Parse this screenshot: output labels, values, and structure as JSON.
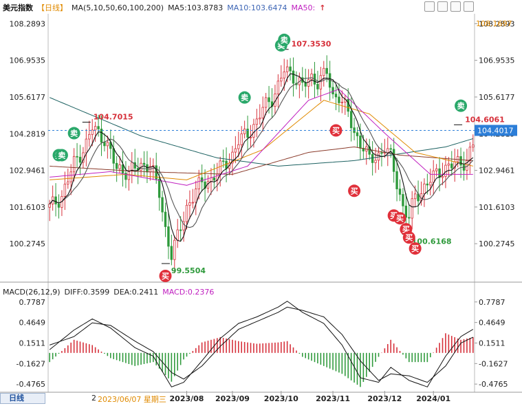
{
  "header": {
    "title": "美元指数",
    "period_tag": "【日线】",
    "ma_label": "MA(5,10,50,60,100,200)",
    "ma5": "MA5:103.8783",
    "ma10": "MA10:103.6474",
    "ma50": "MA50:",
    "ma50_arrow": "↑"
  },
  "macd_header": {
    "label": "MACD(26,12,9)",
    "diff": "DIFF:0.3599",
    "dea": "DEA:0.2411",
    "macd": "MACD:0.2376"
  },
  "footer": {
    "period_button": "日线",
    "cursor_date": "2023/06/07 星期三",
    "first_tick": "2"
  },
  "colors": {
    "up": "#d6303a",
    "down": "#2f9a3c",
    "ma5": "#111111",
    "ma10": "#555555",
    "ma50": "#c020c0",
    "ma60": "#e08a00",
    "ma100": "#8a3a2a",
    "ma200": "#1a6060",
    "diff": "#111111",
    "dea": "#111111",
    "axis_text": "#222222",
    "price_tag_bg": "#2c7ed8",
    "sell_badge": "#2aa86a",
    "buy_badge": "#e0303a"
  },
  "chart_data": [
    {
      "type": "candlestick",
      "title": "美元指数",
      "ylim": [
        99.3,
        108.6
      ],
      "y_ticks": [
        108.2893,
        106.9535,
        105.6177,
        104.2819,
        102.9461,
        101.6103,
        100.2745
      ],
      "y_tick_labels": [
        "108.2893",
        "106.9535",
        "105.6177",
        "104.2819",
        "102.9461",
        "101.6103",
        "100.2745"
      ],
      "x_tick_labels": [
        "2023/08",
        "2023/09",
        "2023/10",
        "2023/11",
        "2023/12",
        "2024/01"
      ],
      "x_tick_index": [
        45,
        60,
        76,
        93,
        110,
        126
      ],
      "candles_count": 140,
      "candle_anchors": [
        [
          0,
          101.6
        ],
        [
          4,
          102.0
        ],
        [
          8,
          103.2
        ],
        [
          12,
          103.9
        ],
        [
          14,
          104.5
        ],
        [
          18,
          104.1
        ],
        [
          22,
          103.0
        ],
        [
          26,
          102.9
        ],
        [
          30,
          103.1
        ],
        [
          33,
          103.2
        ],
        [
          36,
          102.1
        ],
        [
          38,
          100.8
        ],
        [
          40,
          99.9
        ],
        [
          42,
          100.5
        ],
        [
          45,
          101.6
        ],
        [
          48,
          102.2
        ],
        [
          50,
          102.5
        ],
        [
          53,
          102.6
        ],
        [
          56,
          103.0
        ],
        [
          60,
          103.5
        ],
        [
          62,
          104.0
        ],
        [
          65,
          104.3
        ],
        [
          68,
          104.7
        ],
        [
          70,
          105.2
        ],
        [
          73,
          105.6
        ],
        [
          75,
          106.0
        ],
        [
          77,
          106.6
        ],
        [
          80,
          106.4
        ],
        [
          83,
          106.0
        ],
        [
          86,
          106.3
        ],
        [
          88,
          106.2
        ],
        [
          91,
          106.5
        ],
        [
          93,
          105.6
        ],
        [
          95,
          105.7
        ],
        [
          98,
          105.0
        ],
        [
          100,
          104.3
        ],
        [
          103,
          103.8
        ],
        [
          105,
          103.3
        ],
        [
          108,
          103.5
        ],
        [
          110,
          103.8
        ],
        [
          112,
          103.4
        ],
        [
          114,
          102.5
        ],
        [
          116,
          101.6
        ],
        [
          118,
          101.2
        ],
        [
          120,
          102.0
        ],
        [
          122,
          102.2
        ],
        [
          125,
          102.6
        ],
        [
          128,
          102.9
        ],
        [
          131,
          103.1
        ],
        [
          134,
          103.2
        ],
        [
          137,
          103.3
        ],
        [
          139,
          103.9
        ]
      ],
      "current_price": 104.4017,
      "current_price_label": "104.4017",
      "right_top_label": "108.1697",
      "annotations": [
        {
          "label": "107.3530",
          "x": 78,
          "y": 107.353
        },
        {
          "label": "104.7015",
          "x": 13,
          "y": 104.7015
        },
        {
          "label": "99.5504",
          "x": 39,
          "y": 99.5504
        },
        {
          "label": "104.6061",
          "x": 135,
          "y": 104.6061
        },
        {
          "label": "100.6168",
          "x": 118,
          "y": 100.6168
        }
      ],
      "signals": [
        {
          "label": "卖",
          "x": 3,
          "y": 103.5,
          "kind": "sell"
        },
        {
          "label": "卖",
          "x": 4,
          "y": 103.5,
          "kind": "sell"
        },
        {
          "label": "卖",
          "x": 8,
          "y": 104.3,
          "kind": "sell"
        },
        {
          "label": "卖",
          "x": 64,
          "y": 105.6,
          "kind": "sell"
        },
        {
          "label": "卖",
          "x": 76,
          "y": 107.5,
          "kind": "sell"
        },
        {
          "label": "卖",
          "x": 77,
          "y": 107.7,
          "kind": "sell"
        },
        {
          "label": "卖",
          "x": 135,
          "y": 105.3,
          "kind": "sell"
        },
        {
          "label": "买",
          "x": 38,
          "y": 99.1,
          "kind": "buy"
        },
        {
          "label": "买",
          "x": 94,
          "y": 104.4,
          "kind": "buy"
        },
        {
          "label": "买",
          "x": 100,
          "y": 102.2,
          "kind": "buy"
        },
        {
          "label": "买",
          "x": 113,
          "y": 101.3,
          "kind": "buy"
        },
        {
          "label": "买",
          "x": 115,
          "y": 101.2,
          "kind": "buy"
        },
        {
          "label": "买",
          "x": 117,
          "y": 100.8,
          "kind": "buy"
        },
        {
          "label": "买",
          "x": 118,
          "y": 100.5,
          "kind": "buy"
        },
        {
          "label": "买",
          "x": 120,
          "y": 100.1,
          "kind": "buy"
        }
      ],
      "ma_lines": {
        "ma200": [
          [
            0,
            105.6
          ],
          [
            30,
            104.2
          ],
          [
            55,
            103.4
          ],
          [
            75,
            103.1
          ],
          [
            100,
            103.3
          ],
          [
            130,
            103.8
          ],
          [
            139,
            104.1
          ]
        ],
        "ma100": [
          [
            0,
            103.1
          ],
          [
            30,
            102.9
          ],
          [
            60,
            102.8
          ],
          [
            85,
            103.6
          ],
          [
            100,
            103.8
          ],
          [
            115,
            103.5
          ],
          [
            139,
            103.3
          ]
        ],
        "ma60": [
          [
            0,
            102.6
          ],
          [
            25,
            102.8
          ],
          [
            45,
            102.6
          ],
          [
            70,
            103.7
          ],
          [
            90,
            105.5
          ],
          [
            105,
            105.0
          ],
          [
            120,
            103.6
          ],
          [
            139,
            103.1
          ]
        ],
        "ma50": [
          [
            0,
            102.7
          ],
          [
            20,
            102.9
          ],
          [
            45,
            102.4
          ],
          [
            65,
            103.1
          ],
          [
            85,
            105.5
          ],
          [
            95,
            105.9
          ],
          [
            110,
            104.3
          ],
          [
            125,
            102.8
          ],
          [
            139,
            102.8
          ]
        ]
      }
    },
    {
      "type": "macd",
      "ylim": [
        -0.58,
        0.85
      ],
      "y_ticks": [
        0.7787,
        0.4649,
        0.1511,
        -0.1627,
        -0.4765
      ],
      "y_tick_labels": [
        "0.7787",
        "0.4649",
        "0.1511",
        "-0.1627",
        "-0.4765"
      ],
      "series": [
        {
          "name": "DIFF",
          "points": [
            [
              0,
              0.05
            ],
            [
              8,
              0.35
            ],
            [
              14,
              0.52
            ],
            [
              20,
              0.38
            ],
            [
              28,
              0.08
            ],
            [
              34,
              -0.05
            ],
            [
              40,
              -0.52
            ],
            [
              44,
              -0.45
            ],
            [
              50,
              -0.12
            ],
            [
              56,
              0.22
            ],
            [
              62,
              0.45
            ],
            [
              68,
              0.55
            ],
            [
              75,
              0.7
            ],
            [
              78,
              0.79
            ],
            [
              83,
              0.62
            ],
            [
              90,
              0.45
            ],
            [
              96,
              0.12
            ],
            [
              102,
              -0.38
            ],
            [
              108,
              -0.45
            ],
            [
              112,
              -0.22
            ],
            [
              118,
              -0.42
            ],
            [
              124,
              -0.52
            ],
            [
              130,
              -0.05
            ],
            [
              135,
              0.25
            ],
            [
              139,
              0.36
            ]
          ]
        },
        {
          "name": "DEA",
          "points": [
            [
              0,
              0.12
            ],
            [
              8,
              0.25
            ],
            [
              14,
              0.46
            ],
            [
              20,
              0.42
            ],
            [
              28,
              0.18
            ],
            [
              34,
              0.02
            ],
            [
              40,
              -0.3
            ],
            [
              44,
              -0.4
            ],
            [
              50,
              -0.2
            ],
            [
              56,
              0.1
            ],
            [
              62,
              0.36
            ],
            [
              68,
              0.48
            ],
            [
              75,
              0.62
            ],
            [
              78,
              0.7
            ],
            [
              83,
              0.65
            ],
            [
              90,
              0.55
            ],
            [
              96,
              0.28
            ],
            [
              102,
              -0.12
            ],
            [
              108,
              -0.42
            ],
            [
              112,
              -0.32
            ],
            [
              118,
              -0.35
            ],
            [
              124,
              -0.45
            ],
            [
              130,
              -0.2
            ],
            [
              135,
              0.15
            ],
            [
              139,
              0.24
            ]
          ]
        }
      ]
    }
  ]
}
